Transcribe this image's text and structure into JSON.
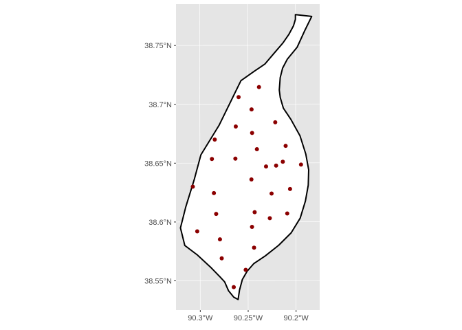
{
  "chart_data": {
    "type": "scatter",
    "panel_background": "#e5e5e5",
    "grid_color": "#ffffff",
    "boundary_color": "#000000",
    "boundary_fill": "#ffffff",
    "point_color": "#8b0000",
    "grid": true,
    "legend": "none",
    "xlim": [
      -90.325,
      -90.175
    ],
    "ylim": [
      38.525,
      38.785
    ],
    "x_ticks": [
      {
        "value": -90.3,
        "label": "90.3°W"
      },
      {
        "value": -90.25,
        "label": "90.25°W"
      },
      {
        "value": -90.2,
        "label": "90.2°W"
      }
    ],
    "y_ticks": [
      {
        "value": 38.55,
        "label": "38.55°N"
      },
      {
        "value": 38.6,
        "label": "38.6°N"
      },
      {
        "value": 38.65,
        "label": "38.65°N"
      },
      {
        "value": 38.7,
        "label": "38.7°N"
      },
      {
        "value": 38.75,
        "label": "38.75°N"
      }
    ],
    "boundary": [
      [
        -90.2,
        38.776
      ],
      [
        -90.183,
        38.7744
      ],
      [
        -90.1905,
        38.762
      ],
      [
        -90.1983,
        38.7482
      ],
      [
        -90.2085,
        38.7382
      ],
      [
        -90.2135,
        38.7305
      ],
      [
        -90.216,
        38.7225
      ],
      [
        -90.217,
        38.712
      ],
      [
        -90.216,
        38.7055
      ],
      [
        -90.2128,
        38.6965
      ],
      [
        -90.205,
        38.687
      ],
      [
        -90.1955,
        38.673
      ],
      [
        -90.1895,
        38.6575
      ],
      [
        -90.1865,
        38.644
      ],
      [
        -90.187,
        38.631
      ],
      [
        -90.19,
        38.6175
      ],
      [
        -90.1955,
        38.603
      ],
      [
        -90.205,
        38.5905
      ],
      [
        -90.218,
        38.58
      ],
      [
        -90.232,
        38.571
      ],
      [
        -90.244,
        38.5645
      ],
      [
        -90.251,
        38.558
      ],
      [
        -90.256,
        38.551
      ],
      [
        -90.259,
        38.542
      ],
      [
        -90.2605,
        38.534
      ],
      [
        -90.265,
        38.536
      ],
      [
        -90.2705,
        38.5415
      ],
      [
        -90.2745,
        38.549
      ],
      [
        -90.279,
        38.553
      ],
      [
        -90.2885,
        38.561
      ],
      [
        -90.303,
        38.572
      ],
      [
        -90.316,
        38.58
      ],
      [
        -90.3205,
        38.595
      ],
      [
        -90.315,
        38.6125
      ],
      [
        -90.306,
        38.636
      ],
      [
        -90.299,
        38.657
      ],
      [
        -90.28,
        38.682
      ],
      [
        -90.257,
        38.72
      ],
      [
        -90.243,
        38.728
      ],
      [
        -90.232,
        38.734
      ],
      [
        -90.2215,
        38.744
      ],
      [
        -90.213,
        38.752
      ],
      [
        -90.207,
        38.759
      ],
      [
        -90.202,
        38.7665
      ],
      [
        -90.2,
        38.772
      ]
    ],
    "points": [
      {
        "x": -90.2382,
        "y": 38.7145
      },
      {
        "x": -90.2595,
        "y": 38.706
      },
      {
        "x": -90.246,
        "y": 38.6955
      },
      {
        "x": -90.2213,
        "y": 38.6845
      },
      {
        "x": -90.2625,
        "y": 38.681
      },
      {
        "x": -90.2455,
        "y": 38.6755
      },
      {
        "x": -90.2845,
        "y": 38.67
      },
      {
        "x": -90.2105,
        "y": 38.6645
      },
      {
        "x": -90.2405,
        "y": 38.6617
      },
      {
        "x": -90.263,
        "y": 38.6537
      },
      {
        "x": -90.2875,
        "y": 38.6535
      },
      {
        "x": -90.2135,
        "y": 38.651
      },
      {
        "x": -90.2205,
        "y": 38.6477
      },
      {
        "x": -90.231,
        "y": 38.647
      },
      {
        "x": -90.1945,
        "y": 38.6485
      },
      {
        "x": -90.2463,
        "y": 38.636
      },
      {
        "x": -90.3075,
        "y": 38.63
      },
      {
        "x": -90.206,
        "y": 38.6278
      },
      {
        "x": -90.2253,
        "y": 38.624
      },
      {
        "x": -90.2855,
        "y": 38.6245
      },
      {
        "x": -90.2832,
        "y": 38.6068
      },
      {
        "x": -90.243,
        "y": 38.6082
      },
      {
        "x": -90.209,
        "y": 38.607
      },
      {
        "x": -90.2272,
        "y": 38.603
      },
      {
        "x": -90.2458,
        "y": 38.5957
      },
      {
        "x": -90.303,
        "y": 38.592
      },
      {
        "x": -90.2793,
        "y": 38.5852
      },
      {
        "x": -90.2437,
        "y": 38.578
      },
      {
        "x": -90.2775,
        "y": 38.569
      },
      {
        "x": -90.2525,
        "y": 38.5592
      },
      {
        "x": -90.265,
        "y": 38.5445
      }
    ]
  }
}
